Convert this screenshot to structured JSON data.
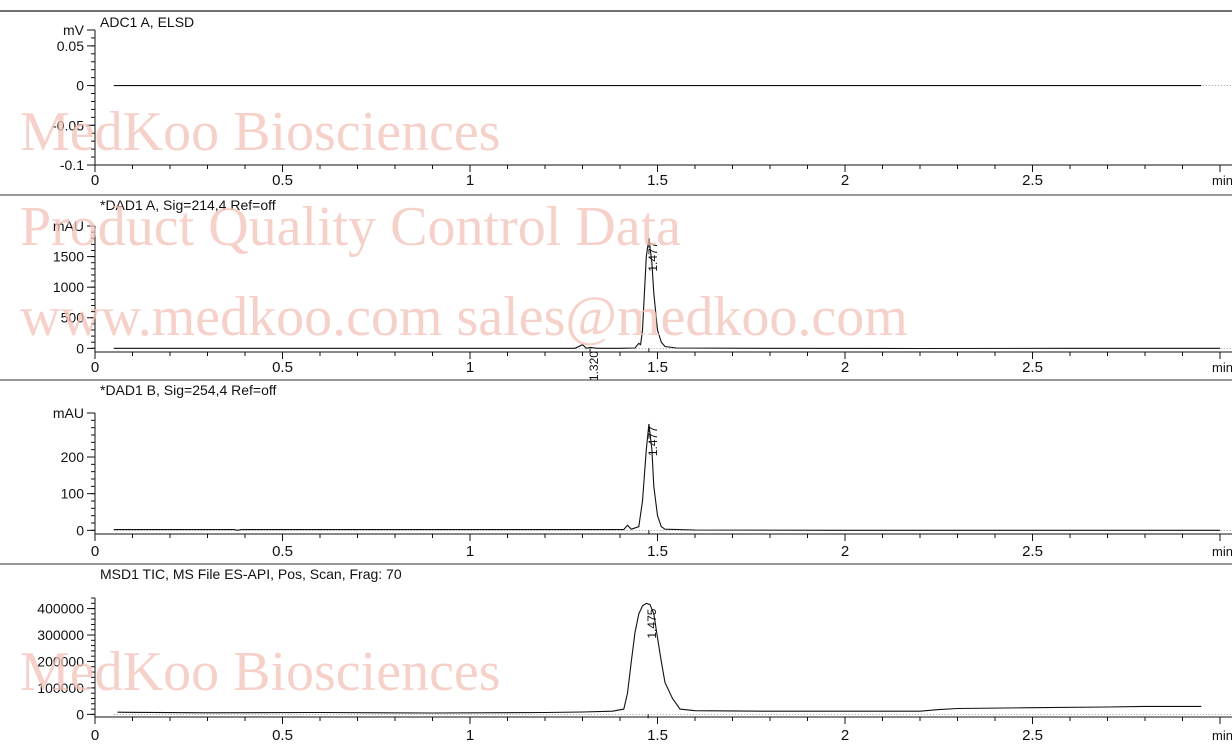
{
  "watermark": {
    "line1": "MedKoo Biosciences",
    "line2": "Product Quality Control Data",
    "line3": "www.medkoo.com  sales@medkoo.com",
    "color": "#f2c1b8"
  },
  "chart_data": [
    {
      "type": "line",
      "title": "ADC1 A, ELSD",
      "ylabel": "mV",
      "xlabel": "min",
      "xlim": [
        0,
        3
      ],
      "ylim": [
        -0.1,
        0.07
      ],
      "yticks": [
        -0.1,
        -0.05,
        0,
        0.05
      ],
      "ytick_labels": [
        "-0.1",
        "-0.05",
        "0",
        "0.05"
      ],
      "xticks": [
        0,
        0.5,
        1,
        1.5,
        2,
        2.5
      ],
      "xtick_labels": [
        "0",
        "0.5",
        "1",
        "1.5",
        "2",
        "2.5"
      ],
      "peak_labels": [],
      "series": [
        {
          "x": [
            0.05,
            2.95
          ],
          "y": [
            0,
            0
          ]
        }
      ]
    },
    {
      "type": "line",
      "title": "*DAD1 A, Sig=214,4 Ref=off",
      "ylabel": "mAU",
      "xlabel": "min",
      "xlim": [
        0,
        3
      ],
      "ylim": [
        -60,
        2000
      ],
      "yticks": [
        0,
        500,
        1000,
        1500
      ],
      "ytick_labels": [
        "0",
        "500",
        "1000",
        "1500"
      ],
      "xticks": [
        0,
        0.5,
        1,
        1.5,
        2,
        2.5
      ],
      "xtick_labels": [
        "0",
        "0.5",
        "1",
        "1.5",
        "2",
        "2.5"
      ],
      "peak_labels": [
        {
          "x": 1.32,
          "y": 20,
          "label": "1.320"
        },
        {
          "x": 1.477,
          "y": 1810,
          "label": "1.477"
        }
      ],
      "series": [
        {
          "x": [
            0.05,
            0.5,
            1.0,
            1.28,
            1.3,
            1.31,
            1.32,
            1.34,
            1.4,
            1.44,
            1.45,
            1.455,
            1.46,
            1.465,
            1.47,
            1.477,
            1.485,
            1.49,
            1.5,
            1.51,
            1.52,
            1.55,
            1.8,
            2.2,
            2.6,
            3.0
          ],
          "y": [
            0,
            0,
            0,
            0,
            60,
            0,
            15,
            0,
            0,
            5,
            80,
            60,
            300,
            900,
            1500,
            1800,
            1400,
            900,
            300,
            100,
            30,
            5,
            0,
            -3,
            0,
            0
          ]
        }
      ]
    },
    {
      "type": "line",
      "title": "*DAD1 B, Sig=254,4 Ref=off",
      "ylabel": "mAU",
      "xlabel": "min",
      "xlim": [
        0,
        3
      ],
      "ylim": [
        -10,
        320
      ],
      "yticks": [
        0,
        100,
        200
      ],
      "ytick_labels": [
        "0",
        "100",
        "200"
      ],
      "xticks": [
        0,
        0.5,
        1,
        1.5,
        2,
        2.5
      ],
      "xtick_labels": [
        "0",
        "0.5",
        "1",
        "1.5",
        "2",
        "2.5"
      ],
      "peak_labels": [
        {
          "x": 1.477,
          "y": 295,
          "label": "1.477"
        }
      ],
      "series": [
        {
          "x": [
            0.05,
            0.37,
            0.38,
            0.39,
            0.5,
            1.0,
            1.41,
            1.42,
            1.43,
            1.45,
            1.46,
            1.47,
            1.477,
            1.485,
            1.49,
            1.5,
            1.51,
            1.52,
            1.6,
            2.0,
            2.5,
            3.0
          ],
          "y": [
            2,
            2,
            0,
            2,
            2,
            2,
            2,
            14,
            3,
            10,
            80,
            220,
            290,
            220,
            120,
            40,
            10,
            3,
            1,
            0,
            0,
            0
          ]
        }
      ]
    },
    {
      "type": "line",
      "title": "MSD1 TIC, MS File     ES-API, Pos, Scan, Frag: 70",
      "ylabel": "",
      "xlabel": "min",
      "xlim": [
        0,
        3
      ],
      "ylim": [
        -10000,
        440000
      ],
      "yticks": [
        0,
        100000,
        200000,
        300000,
        400000
      ],
      "ytick_labels": [
        "0",
        "100000",
        "200000",
        "300000",
        "400000"
      ],
      "xticks": [
        0,
        0.5,
        1,
        1.5,
        2,
        2.5
      ],
      "xtick_labels": [
        "0",
        "0.5",
        "1",
        "1.5",
        "2",
        "2.5"
      ],
      "peak_labels": [
        {
          "x": 1.475,
          "y": 415000,
          "label": "1.475"
        }
      ],
      "series": [
        {
          "x": [
            0.06,
            0.3,
            0.6,
            0.9,
            1.2,
            1.3,
            1.38,
            1.41,
            1.42,
            1.43,
            1.44,
            1.45,
            1.46,
            1.47,
            1.48,
            1.49,
            1.5,
            1.51,
            1.52,
            1.54,
            1.56,
            1.6,
            1.8,
            2.2,
            2.25,
            2.3,
            2.5,
            2.7,
            2.8,
            2.95
          ],
          "y": [
            8000,
            6000,
            7000,
            5000,
            7000,
            9000,
            12000,
            20000,
            80000,
            200000,
            310000,
            380000,
            410000,
            420000,
            415000,
            380000,
            290000,
            200000,
            120000,
            60000,
            20000,
            14000,
            12000,
            12000,
            18000,
            22000,
            25000,
            28000,
            30000,
            30000
          ]
        }
      ]
    }
  ]
}
